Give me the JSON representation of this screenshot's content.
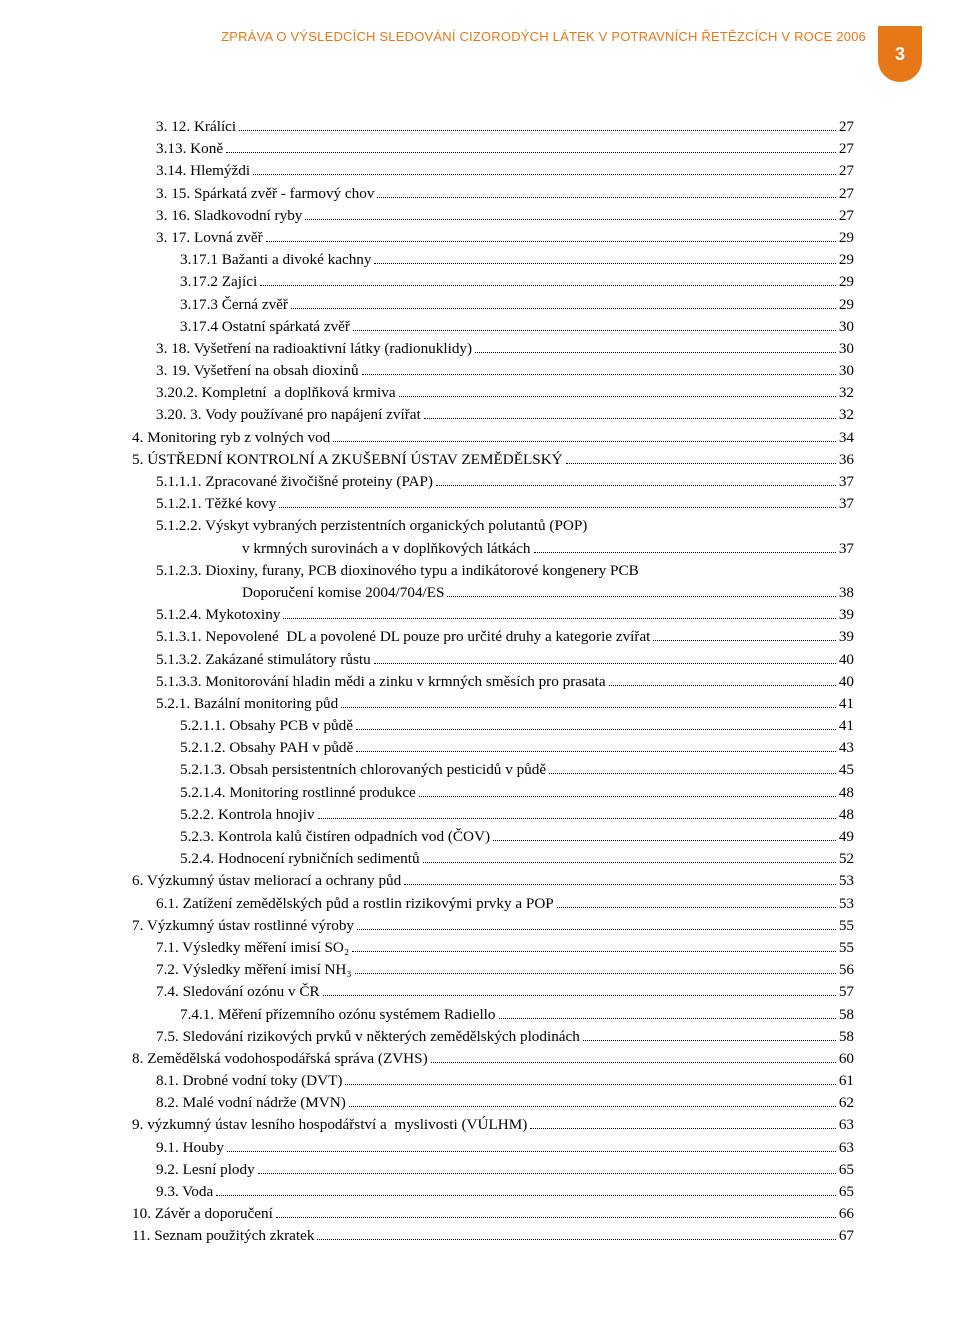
{
  "header": {
    "title": "ZPRÁVA O VÝSLEDCÍCH SLEDOVÁNÍ CIZORODÝCH LÁTEK V POTRAVNÍCH ŘETĚZCÍCH V ROCE 2006",
    "page_number": "3",
    "title_color": "#e67817",
    "tab_bg": "#e67817",
    "tab_fg": "#ffffff"
  },
  "toc": [
    {
      "indent": 1,
      "label": "3. 12. Králíci",
      "page": "27"
    },
    {
      "indent": 1,
      "label": "3.13. Koně",
      "page": "27"
    },
    {
      "indent": 1,
      "label": "3.14. Hlemýždi",
      "page": "27"
    },
    {
      "indent": 1,
      "label": "3. 15. Spárkatá zvěř - farmový chov",
      "page": "27"
    },
    {
      "indent": 1,
      "label": "3. 16. Sladkovodní ryby",
      "page": "27"
    },
    {
      "indent": 1,
      "label": "3. 17. Lovná zvěř",
      "page": "29"
    },
    {
      "indent": 2,
      "label": "3.17.1 Bažanti a divoké kachny",
      "page": "29"
    },
    {
      "indent": 2,
      "label": "3.17.2 Zajíci",
      "page": "29"
    },
    {
      "indent": 2,
      "label": "3.17.3 Černá zvěř",
      "page": "29"
    },
    {
      "indent": 2,
      "label": "3.17.4 Ostatní spárkatá zvěř",
      "page": "30"
    },
    {
      "indent": 1,
      "label": "3. 18. Vyšetření na radioaktivní látky (radionuklidy)",
      "page": "30"
    },
    {
      "indent": 1,
      "label": "3. 19. Vyšetření na obsah dioxinů",
      "page": "30"
    },
    {
      "indent": 1,
      "label": "3.20.2. Kompletní  a doplňková krmiva",
      "page": "32"
    },
    {
      "indent": 1,
      "label": "3.20. 3. Vody používané pro napájení zvířat",
      "page": "32"
    },
    {
      "indent": 0,
      "label": "4. Monitoring ryb z volných vod",
      "page": "34"
    },
    {
      "indent": 0,
      "label": "5. ÚSTŘEDNÍ KONTROLNÍ A ZKUŠEBNÍ ÚSTAV ZEMĚDĚLSKÝ",
      "page": "36"
    },
    {
      "indent": 1,
      "label": "5.1.1.1. Zpracované živočišné proteiny (PAP)",
      "page": "37"
    },
    {
      "indent": 1,
      "label": "5.1.2.1. Těžké kovy",
      "page": "37"
    },
    {
      "indent": 1,
      "label": "5.1.2.2. Výskyt vybraných perzistentních organických polutantů (POP)"
    },
    {
      "indent": 4,
      "label": "v krmných surovinách a v doplňkových látkách",
      "page": "37"
    },
    {
      "indent": 1,
      "label": "5.1.2.3. Dioxiny, furany, PCB dioxinového typu a indikátorové kongenery PCB"
    },
    {
      "indent": 4,
      "label": "Doporučení komise 2004/704/ES",
      "page": "38"
    },
    {
      "indent": 1,
      "label": "5.1.2.4. Mykotoxiny",
      "page": "39"
    },
    {
      "indent": 1,
      "label": "5.1.3.1. Nepovolené  DL a povolené DL pouze pro určité druhy a kategorie zvířat",
      "page": "39"
    },
    {
      "indent": 1,
      "label": "5.1.3.2. Zakázané stimulátory růstu",
      "page": "40"
    },
    {
      "indent": 1,
      "label": "5.1.3.3. Monitorování hladin mědi a zinku v krmných směsích pro prasata",
      "page": "40"
    },
    {
      "indent": 1,
      "label": "5.2.1. Bazální monitoring půd",
      "page": " 41"
    },
    {
      "indent": 2,
      "label": "5.2.1.1. Obsahy PCB v půdě",
      "page": "41"
    },
    {
      "indent": 2,
      "label": "5.2.1.2. Obsahy PAH v půdě",
      "page": "43"
    },
    {
      "indent": 2,
      "label": "5.2.1.3. Obsah persistentních chlorovaných pesticidů v půdě",
      "page": "45"
    },
    {
      "indent": 2,
      "label": "5.2.1.4. Monitoring rostlinné produkce",
      "page": "48"
    },
    {
      "indent": 2,
      "label": "5.2.2. Kontrola hnojiv",
      "page": "48"
    },
    {
      "indent": 2,
      "label": "5.2.3. Kontrola kalů čistíren odpadních vod (ČOV)",
      "page": "49"
    },
    {
      "indent": 2,
      "label": "5.2.4. Hodnocení rybničních sedimentů",
      "page": "52"
    },
    {
      "indent": 0,
      "label": "6. Výzkumný ústav meliorací a ochrany půd",
      "page": "53"
    },
    {
      "indent": 1,
      "label": "6.1. Zatížení zemědělských půd a rostlin rizikovými prvky a POP",
      "page": "53"
    },
    {
      "indent": 0,
      "label": "7. Výzkumný ústav rostlinné výroby",
      "page": "55"
    },
    {
      "indent": 1,
      "label": "7.1. Výsledky měření imisí SO₂",
      "page": "55"
    },
    {
      "indent": 1,
      "label": "7.2. Výsledky měření imisí NH₃",
      "page": "56"
    },
    {
      "indent": 1,
      "label": "7.4. Sledování ozónu v ČR",
      "page": "57"
    },
    {
      "indent": 2,
      "label": "7.4.1. Měření přízemního ozónu systémem Radiello",
      "page": "58"
    },
    {
      "indent": 1,
      "label": "7.5. Sledování rizikových prvků v některých zemědělských plodinách",
      "page": "58"
    },
    {
      "indent": 0,
      "label": "8. Zemědělská vodohospodářská správa (ZVHS)",
      "page": "60"
    },
    {
      "indent": 1,
      "label": "8.1. Drobné vodní toky (DVT)",
      "page": "61"
    },
    {
      "indent": 1,
      "label": "8.2. Malé vodní nádrže (MVN)",
      "page": "62"
    },
    {
      "indent": 0,
      "label": "9. výzkumný ústav lesního hospodářství a  myslivosti (VÚLHM)",
      "page": "63"
    },
    {
      "indent": 1,
      "label": "9.1. Houby",
      "page": "63"
    },
    {
      "indent": 1,
      "label": "9.2. Lesní plody",
      "page": "65"
    },
    {
      "indent": 1,
      "label": "9.3. Voda",
      "page": "65"
    },
    {
      "indent": 0,
      "label": "10. Závěr a doporučení",
      "page": "66"
    },
    {
      "indent": 0,
      "label": "11. Seznam použitých zkratek",
      "page": "67"
    }
  ]
}
